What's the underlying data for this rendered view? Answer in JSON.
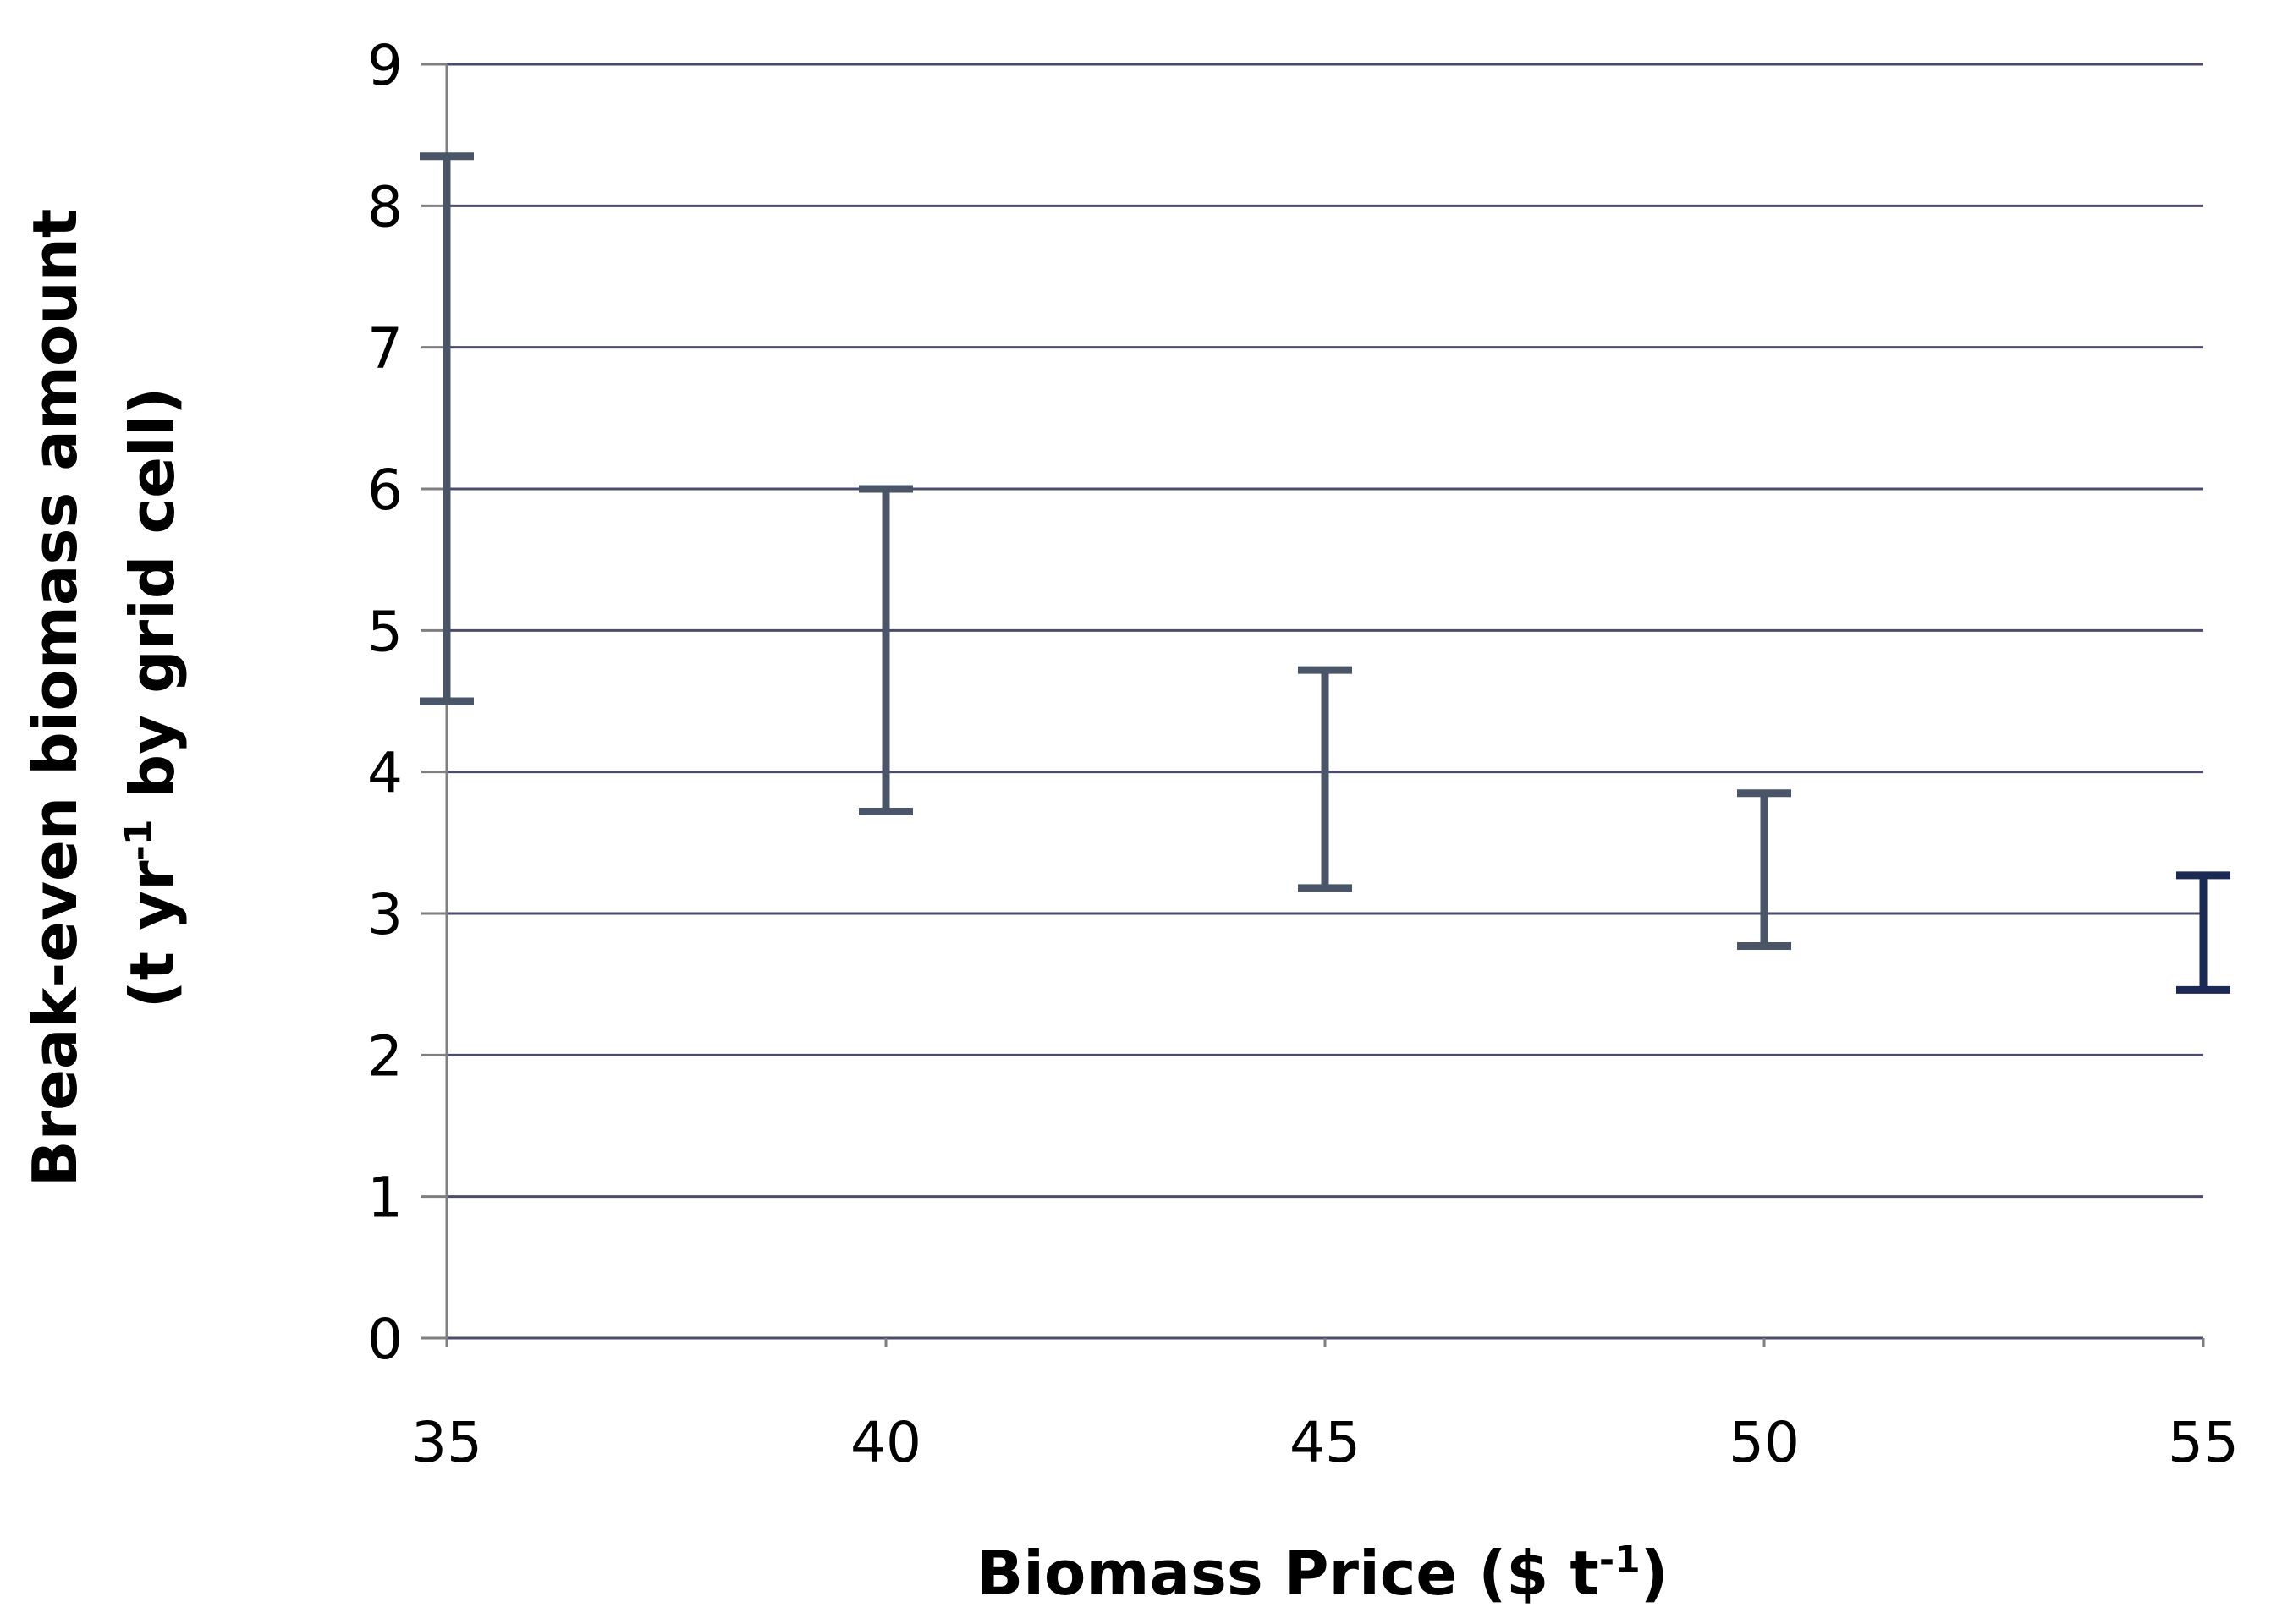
{
  "chart_data": {
    "type": "range",
    "title": "",
    "xlabel": {
      "main": "Biomass Price ($ t",
      "sup": "-1",
      "tail": ")"
    },
    "ylabel": {
      "line1": "Break-even biomass amount",
      "line2_pre": "(t yr",
      "line2_sup": "-1",
      "line2_post": " by grid cell)"
    },
    "x": [
      35,
      40,
      45,
      50,
      55
    ],
    "series": [
      {
        "low": [
          4.5,
          3.72,
          3.18,
          2.77,
          2.46
        ],
        "high": [
          8.35,
          6.0,
          4.72,
          3.85,
          3.27
        ]
      }
    ],
    "colors": [
      "#4a5568",
      "#4a5568",
      "#4a5568",
      "#4a5568",
      "#1b2a55"
    ],
    "xlim": [
      35,
      55
    ],
    "ylim": [
      0,
      9
    ],
    "yticks": [
      0,
      1,
      2,
      3,
      4,
      5,
      6,
      7,
      8,
      9
    ],
    "xticks": [
      35,
      40,
      45,
      50,
      55
    ],
    "grid": true,
    "legend": "none"
  }
}
